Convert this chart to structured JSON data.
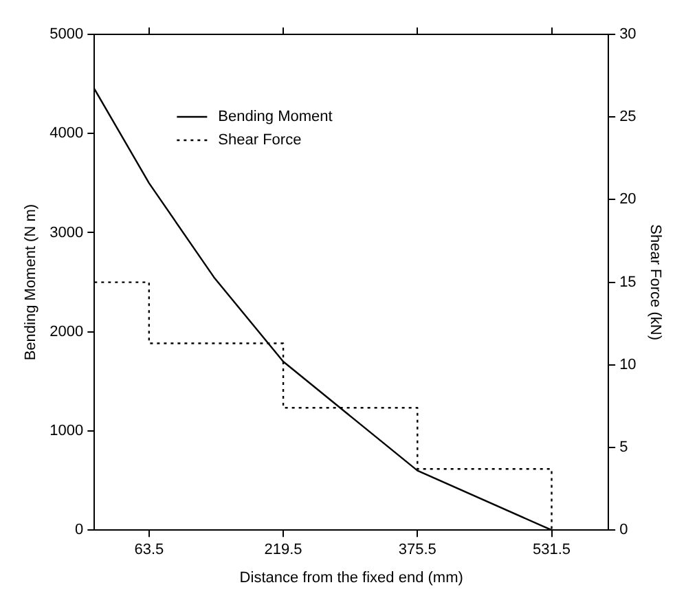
{
  "chart_data": {
    "type": "line",
    "xlabel": "Distance from the fixed end (mm)",
    "ylabel": "Bending Moment (N m)",
    "y2label": "Shear Force (kN)",
    "xlim": [
      0,
      597.5
    ],
    "xticks": [
      63.5,
      219.5,
      375.5,
      531.5
    ],
    "ylim": [
      0,
      5000
    ],
    "yticks": [
      0,
      1000,
      2000,
      3000,
      4000,
      5000
    ],
    "y2lim": [
      0,
      30
    ],
    "y2ticks": [
      0,
      5,
      10,
      15,
      20,
      25,
      30
    ],
    "series": [
      {
        "name": "Bending Moment",
        "color": "#000000",
        "line_style": "solid",
        "x": [
          0,
          63.5,
          139,
          219.5,
          375.5,
          531.5
        ],
        "values": [
          4450,
          3500,
          2550,
          1700,
          600,
          0
        ]
      },
      {
        "name": "Shear Force",
        "type": "step",
        "axis": "y2",
        "color": "#000000",
        "line_style": "dotted",
        "x": [
          0,
          63.5,
          219.5,
          375.5,
          531.5
        ],
        "values": [
          15,
          11.3,
          7.4,
          3.7,
          0
        ]
      }
    ],
    "grid": false,
    "legend": "top left",
    "marker": "none"
  }
}
